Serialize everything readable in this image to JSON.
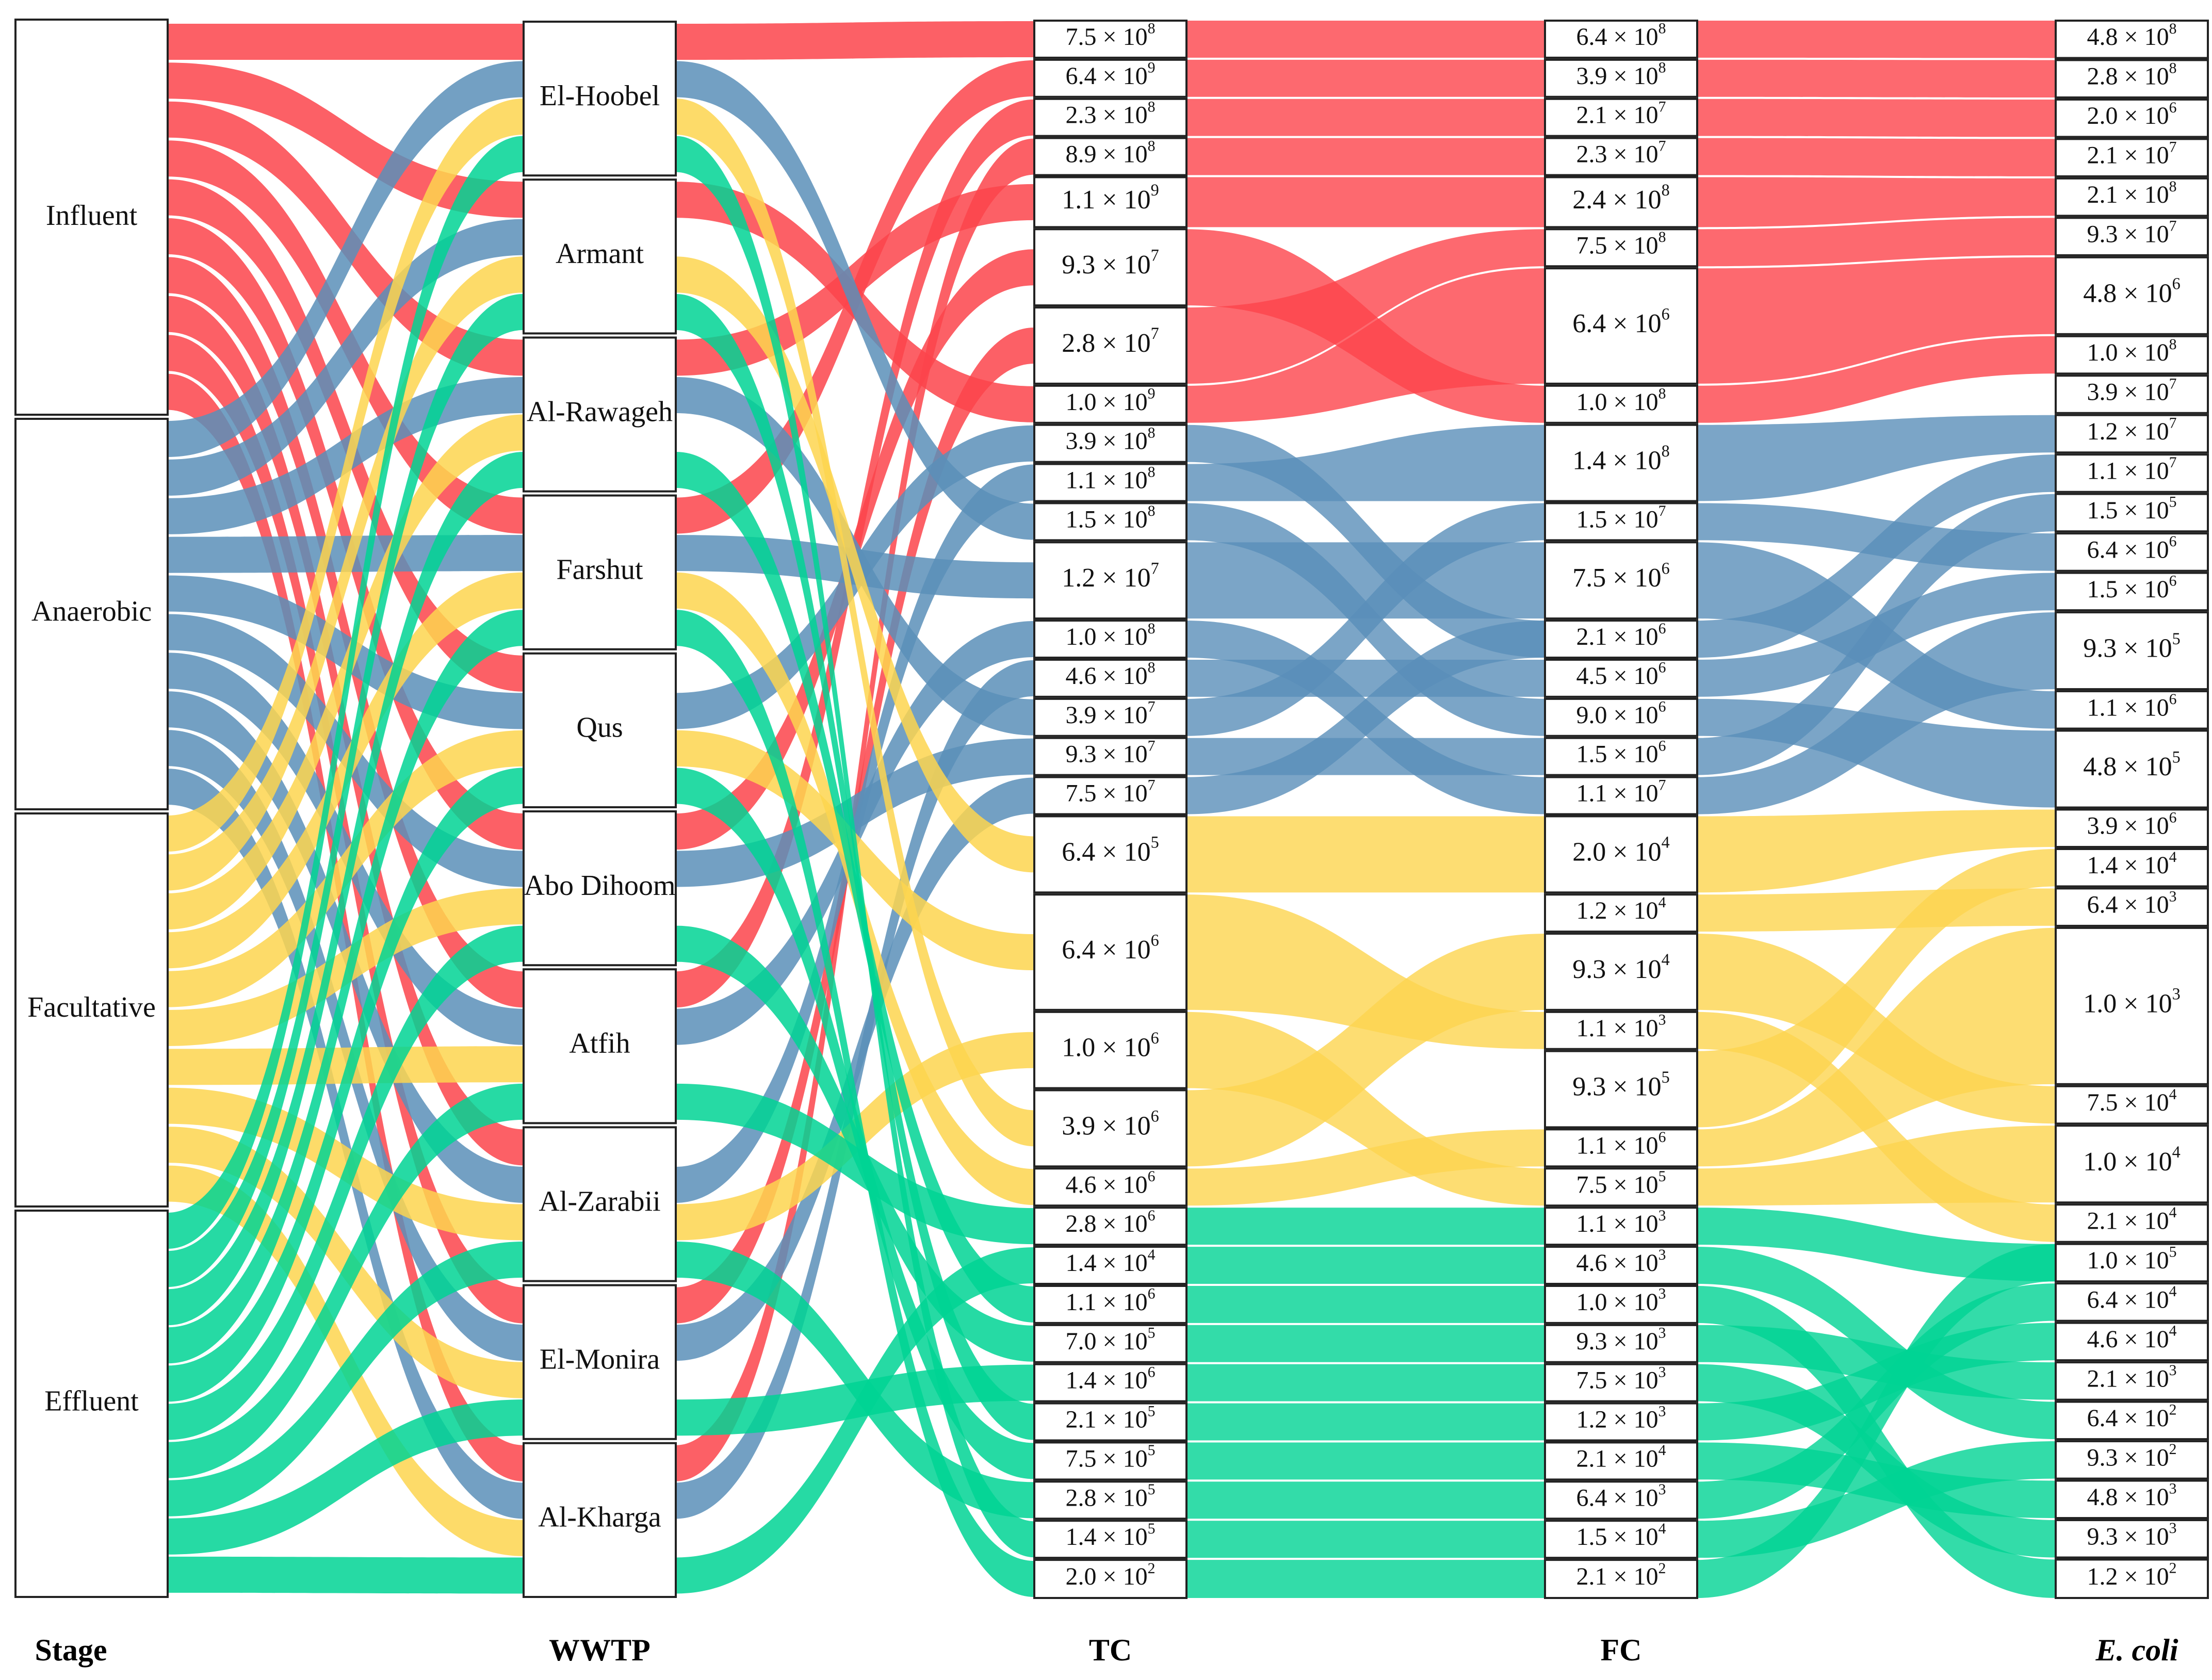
{
  "colors": {
    "Influent": "#fc444b",
    "Anaerobic": "#5a8fb9",
    "Facultative": "#fdd54f",
    "Effluent": "#00d394"
  },
  "columns": [
    {
      "key": "stage",
      "label": "Stage",
      "italic": false
    },
    {
      "key": "wwtp",
      "label": "WWTP",
      "italic": false
    },
    {
      "key": "tc",
      "label": "TC",
      "italic": false
    },
    {
      "key": "fc",
      "label": "FC",
      "italic": false
    },
    {
      "key": "ecoli",
      "label": "E. coli",
      "italic": true
    }
  ],
  "stages": [
    "Influent",
    "Anaerobic",
    "Facultative",
    "Effluent"
  ],
  "wwtps": [
    "El-Hoobel",
    "Armant",
    "Al-Rawageh",
    "Farshut",
    "Qus",
    "Abo Dihoom",
    "Atfih",
    "Al-Zarabii",
    "El-Monira",
    "Al-Kharga"
  ],
  "chart_data": {
    "type": "sankey",
    "note": "Alluvial diagram linking treatment stage, WWTP and bacterial counts (CFU/100 mL). Node labels listed top-to-bottom per column.",
    "tc_labels": [
      {
        "m": "7.5",
        "e": "8"
      },
      {
        "m": "6.4",
        "e": "9"
      },
      {
        "m": "2.3",
        "e": "8"
      },
      {
        "m": "8.9",
        "e": "8"
      },
      {
        "m": "1.1",
        "e": "9"
      },
      {
        "m": "9.3",
        "e": "7"
      },
      {
        "m": "2.8",
        "e": "7"
      },
      {
        "m": "1.0",
        "e": "9"
      },
      {
        "m": "3.9",
        "e": "8"
      },
      {
        "m": "1.1",
        "e": "8"
      },
      {
        "m": "1.5",
        "e": "8"
      },
      {
        "m": "1.2",
        "e": "7"
      },
      {
        "m": "1.0",
        "e": "8"
      },
      {
        "m": "4.6",
        "e": "8"
      },
      {
        "m": "3.9",
        "e": "7"
      },
      {
        "m": "9.3",
        "e": "7"
      },
      {
        "m": "7.5",
        "e": "7"
      },
      {
        "m": "6.4",
        "e": "5"
      },
      {
        "m": "6.4",
        "e": "6"
      },
      {
        "m": "1.0",
        "e": "6"
      },
      {
        "m": "3.9",
        "e": "6"
      },
      {
        "m": "4.6",
        "e": "6"
      },
      {
        "m": "2.8",
        "e": "6"
      },
      {
        "m": "1.4",
        "e": "4"
      },
      {
        "m": "1.1",
        "e": "6"
      },
      {
        "m": "7.0",
        "e": "5"
      },
      {
        "m": "1.4",
        "e": "6"
      },
      {
        "m": "2.1",
        "e": "5"
      },
      {
        "m": "7.5",
        "e": "5"
      },
      {
        "m": "2.8",
        "e": "5"
      },
      {
        "m": "1.4",
        "e": "5"
      },
      {
        "m": "2.0",
        "e": "2"
      }
    ],
    "fc_labels": [
      {
        "m": "6.4",
        "e": "8"
      },
      {
        "m": "3.9",
        "e": "8"
      },
      {
        "m": "2.1",
        "e": "7"
      },
      {
        "m": "2.3",
        "e": "7"
      },
      {
        "m": "2.4",
        "e": "8"
      },
      {
        "m": "7.5",
        "e": "8"
      },
      {
        "m": "6.4",
        "e": "6"
      },
      {
        "m": "1.0",
        "e": "8"
      },
      {
        "m": "1.4",
        "e": "8"
      },
      {
        "m": "1.5",
        "e": "7"
      },
      {
        "m": "7.5",
        "e": "6"
      },
      {
        "m": "2.1",
        "e": "6"
      },
      {
        "m": "4.5",
        "e": "6"
      },
      {
        "m": "9.0",
        "e": "6"
      },
      {
        "m": "1.5",
        "e": "6"
      },
      {
        "m": "1.1",
        "e": "7"
      },
      {
        "m": "2.0",
        "e": "4"
      },
      {
        "m": "1.2",
        "e": "4"
      },
      {
        "m": "9.3",
        "e": "4"
      },
      {
        "m": "1.1",
        "e": "3"
      },
      {
        "m": "9.3",
        "e": "5"
      },
      {
        "m": "1.1",
        "e": "6"
      },
      {
        "m": "7.5",
        "e": "5"
      },
      {
        "m": "1.1",
        "e": "3"
      },
      {
        "m": "4.6",
        "e": "3"
      },
      {
        "m": "1.0",
        "e": "3"
      },
      {
        "m": "9.3",
        "e": "3"
      },
      {
        "m": "7.5",
        "e": "3"
      },
      {
        "m": "1.2",
        "e": "3"
      },
      {
        "m": "2.1",
        "e": "4"
      },
      {
        "m": "6.4",
        "e": "3"
      },
      {
        "m": "1.5",
        "e": "4"
      },
      {
        "m": "2.1",
        "e": "2"
      }
    ],
    "ecoli_labels": [
      {
        "m": "4.8",
        "e": "8"
      },
      {
        "m": "2.8",
        "e": "8"
      },
      {
        "m": "2.0",
        "e": "6"
      },
      {
        "m": "2.1",
        "e": "7"
      },
      {
        "m": "2.1",
        "e": "8"
      },
      {
        "m": "9.3",
        "e": "7"
      },
      {
        "m": "4.8",
        "e": "6"
      },
      {
        "m": "1.0",
        "e": "8"
      },
      {
        "m": "3.9",
        "e": "7"
      },
      {
        "m": "1.2",
        "e": "7"
      },
      {
        "m": "1.1",
        "e": "7"
      },
      {
        "m": "1.5",
        "e": "5"
      },
      {
        "m": "6.4",
        "e": "6"
      },
      {
        "m": "1.5",
        "e": "6"
      },
      {
        "m": "9.3",
        "e": "5"
      },
      {
        "m": "1.1",
        "e": "6"
      },
      {
        "m": "4.8",
        "e": "5"
      },
      {
        "m": "3.9",
        "e": "6"
      },
      {
        "m": "1.4",
        "e": "4"
      },
      {
        "m": "6.4",
        "e": "3"
      },
      {
        "m": "1.0",
        "e": "3"
      },
      {
        "m": "7.5",
        "e": "4"
      },
      {
        "m": "1.0",
        "e": "4"
      },
      {
        "m": "2.1",
        "e": "4"
      },
      {
        "m": "1.0",
        "e": "5"
      },
      {
        "m": "6.4",
        "e": "4"
      },
      {
        "m": "4.6",
        "e": "4"
      },
      {
        "m": "2.1",
        "e": "3"
      },
      {
        "m": "6.4",
        "e": "2"
      },
      {
        "m": "9.3",
        "e": "2"
      },
      {
        "m": "4.8",
        "e": "3"
      },
      {
        "m": "9.3",
        "e": "3"
      },
      {
        "m": "1.2",
        "e": "2"
      }
    ]
  }
}
